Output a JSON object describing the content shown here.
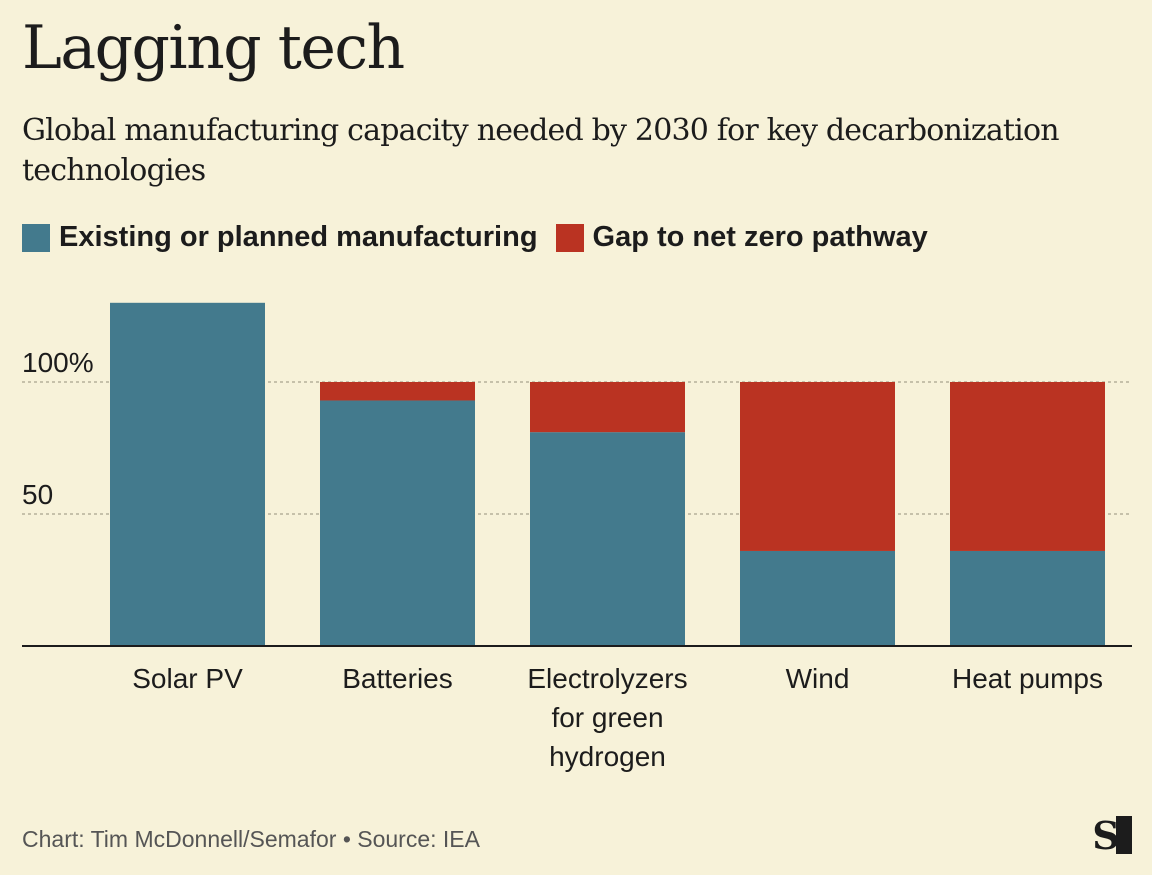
{
  "title": "Lagging tech",
  "subtitle": "Global manufacturing capacity needed by 2030 for key decarbonization technologies",
  "legend": [
    {
      "label": "Existing or planned manufacturing",
      "color": "#437a8d"
    },
    {
      "label": "Gap to net zero pathway",
      "color": "#ba3322"
    }
  ],
  "footer": {
    "credit": "Chart: Tim McDonnell/Semafor • Source: IEA"
  },
  "logo_letter": "S",
  "chart_data": {
    "type": "bar",
    "stacked": true,
    "categories": [
      [
        "Solar PV"
      ],
      [
        "Batteries"
      ],
      [
        "Electrolyzers",
        "for green",
        "hydrogen"
      ],
      [
        "Wind"
      ],
      [
        "Heat pumps"
      ]
    ],
    "series": [
      {
        "name": "Existing or planned manufacturing",
        "color": "#437a8d",
        "values": [
          130,
          93,
          81,
          36,
          36
        ]
      },
      {
        "name": "Gap to net zero pathway",
        "color": "#ba3322",
        "values": [
          0,
          7,
          19,
          64,
          64
        ]
      }
    ],
    "yticks": [
      {
        "value": 50,
        "label": "50"
      },
      {
        "value": 100,
        "label": "100%"
      }
    ],
    "ylim": [
      0,
      135
    ],
    "grid": true,
    "legend_position": "top-left"
  }
}
